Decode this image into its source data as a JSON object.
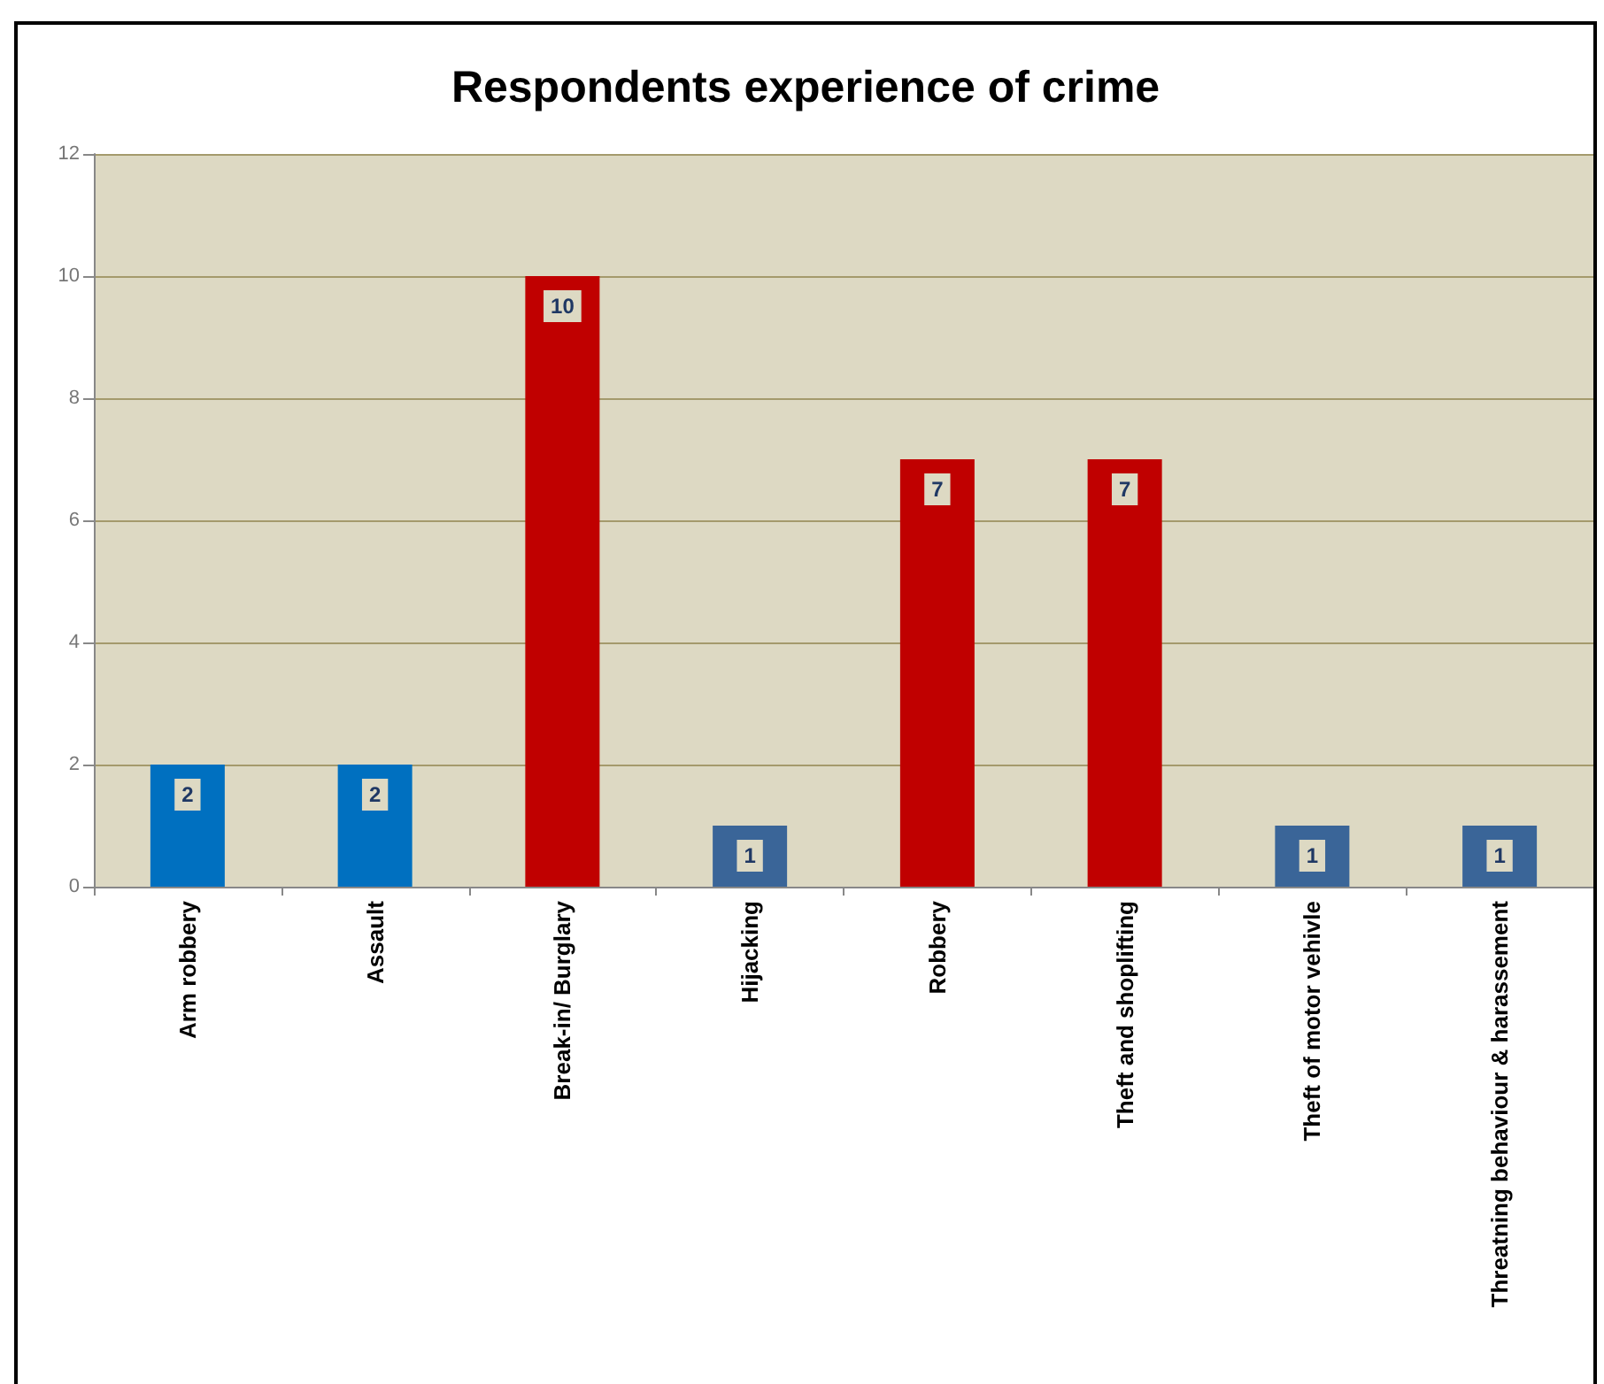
{
  "chart_data": {
    "type": "bar",
    "title": "Respondents experience of crime",
    "categories": [
      "Arm robbery",
      "Assault",
      "Break-in/ Burglary",
      "Hijacking",
      "Robbery",
      "Theft and shoplifting",
      "Theft of motor vehivle",
      "Threatning behaviour & harassement"
    ],
    "values": [
      2,
      2,
      10,
      1,
      7,
      7,
      1,
      1
    ],
    "colors": [
      "#0070c0",
      "#0070c0",
      "#c00000",
      "#3a6598",
      "#c00000",
      "#c00000",
      "#3a6598",
      "#3a6598"
    ],
    "ylim": [
      0,
      12
    ],
    "yticks": [
      0,
      2,
      4,
      6,
      8,
      10,
      12
    ],
    "grid": "y",
    "data_labels": true
  }
}
